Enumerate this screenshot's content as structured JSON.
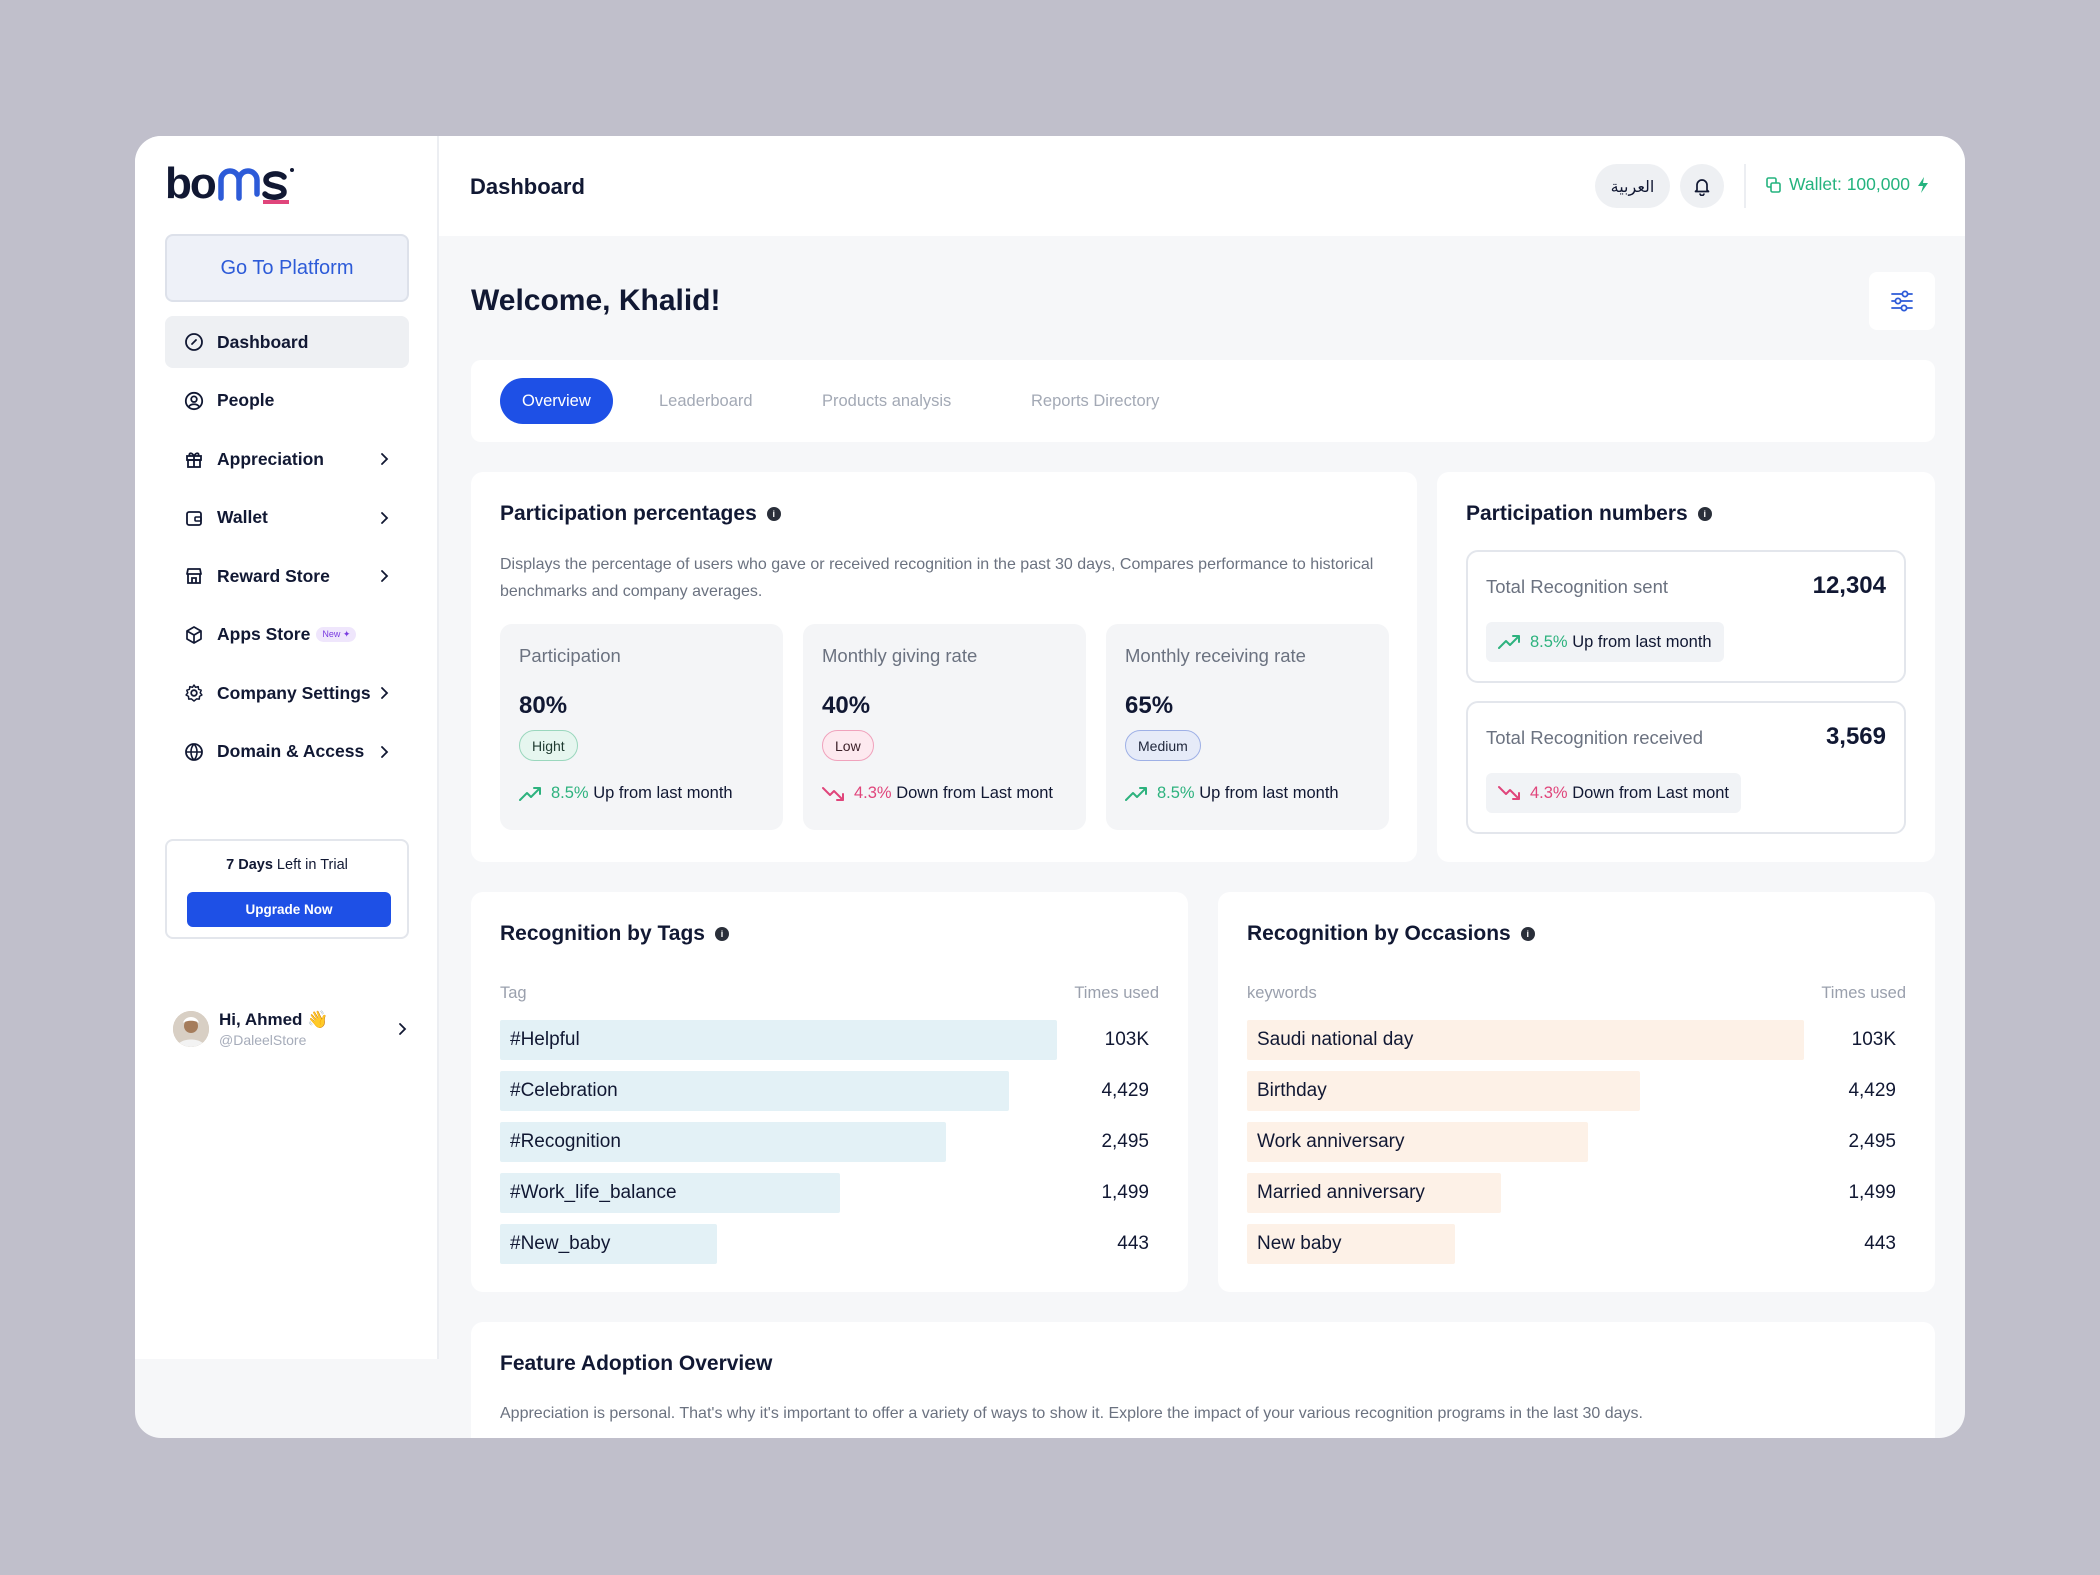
{
  "brand": {
    "name": "bonus",
    "primary_color": "#1e50e6",
    "logo_colors": [
      "#111833",
      "#2d5bd8",
      "#e0457b",
      "#f2c200"
    ]
  },
  "sidebar": {
    "platform_button": "Go To Platform",
    "items": [
      {
        "label": "Dashboard",
        "icon": "dashboard-icon",
        "active": true,
        "has_children": false
      },
      {
        "label": "People",
        "icon": "user-circle-icon",
        "has_children": false
      },
      {
        "label": "Appreciation",
        "icon": "gift-icon",
        "has_children": true
      },
      {
        "label": "Wallet",
        "icon": "wallet-icon",
        "has_children": true
      },
      {
        "label": "Reward Store",
        "icon": "store-icon",
        "has_children": true
      },
      {
        "label": "Apps Store",
        "icon": "cube-icon",
        "badge": "New",
        "has_children": false
      },
      {
        "label": "Company Settings",
        "icon": "gear-icon",
        "has_children": true
      },
      {
        "label": "Domain & Access",
        "icon": "globe-icon",
        "has_children": true
      }
    ],
    "trial": {
      "days": "7 Days",
      "text": " Left in Trial",
      "button": "Upgrade Now"
    },
    "profile": {
      "greeting": "Hi, Ahmed",
      "emoji": "👋",
      "handle": "@DaleelStore"
    }
  },
  "topbar": {
    "title": "Dashboard",
    "language_button": "العربية",
    "wallet": "Wallet: 100,000"
  },
  "main": {
    "welcome": "Welcome, Khalid!",
    "tabs": [
      {
        "label": "Overview",
        "active": true
      },
      {
        "label": "Leaderboard"
      },
      {
        "label": "Products analysis"
      },
      {
        "label": "Reports Directory"
      }
    ]
  },
  "participation": {
    "title": "Participation percentages",
    "description": "Displays the percentage of users who gave or received recognition in the past 30 days, Compares performance to historical benchmarks and company averages.",
    "stats": [
      {
        "label": "Participation",
        "value": "80%",
        "badge": "Hight",
        "trend_pct": "8.5%",
        "trend_text": "Up from last month",
        "direction": "up"
      },
      {
        "label": "Monthly giving rate",
        "value": "40%",
        "badge": "Low",
        "trend_pct": "4.3%",
        "trend_text": "Down from Last mont",
        "direction": "down"
      },
      {
        "label": "Monthly receiving rate",
        "value": "65%",
        "badge": "Medium",
        "trend_pct": "8.5%",
        "trend_text": "Up from last month",
        "direction": "up"
      }
    ]
  },
  "numbers": {
    "title": "Participation numbers",
    "items": [
      {
        "label": "Total Recognition sent",
        "value": "12,304",
        "trend_pct": "8.5%",
        "trend_text": "Up from last month",
        "direction": "up"
      },
      {
        "label": "Total Recognition received",
        "value": "3,569",
        "trend_pct": "4.3%",
        "trend_text": "Down from Last mont",
        "direction": "down"
      }
    ]
  },
  "tags": {
    "title": "Recognition by Tags",
    "col_left": "Tag",
    "col_right": "Times used",
    "bar_color": "#e3f1f6",
    "rows": [
      {
        "label": "#Helpful",
        "value": "103K",
        "share": 1.0
      },
      {
        "label": "#Celebration",
        "value": "4,429",
        "share": 0.913
      },
      {
        "label": "#Recognition",
        "value": "2,495",
        "share": 0.8
      },
      {
        "label": "#Work_life_balance",
        "value": "1,499",
        "share": 0.61
      },
      {
        "label": "#New_baby",
        "value": "443",
        "share": 0.39
      }
    ]
  },
  "occasions": {
    "title": "Recognition by Occasions",
    "col_left": "keywords",
    "col_right": "Times used",
    "bar_color": "#fdf1e7",
    "rows": [
      {
        "label": "Saudi national day",
        "value": "103K",
        "share": 1.0
      },
      {
        "label": "Birthday",
        "value": "4,429",
        "share": 0.706
      },
      {
        "label": "Work anniversary",
        "value": "2,495",
        "share": 0.613
      },
      {
        "label": "Married anniversary",
        "value": "1,499",
        "share": 0.456
      },
      {
        "label": "New baby",
        "value": "443",
        "share": 0.373
      }
    ]
  },
  "feature": {
    "title": "Feature Adoption Overview",
    "description": "Appreciation is personal. That's why it's important to offer a variety of ways to show it. Explore the impact of your various recognition programs in the last 30 days."
  }
}
